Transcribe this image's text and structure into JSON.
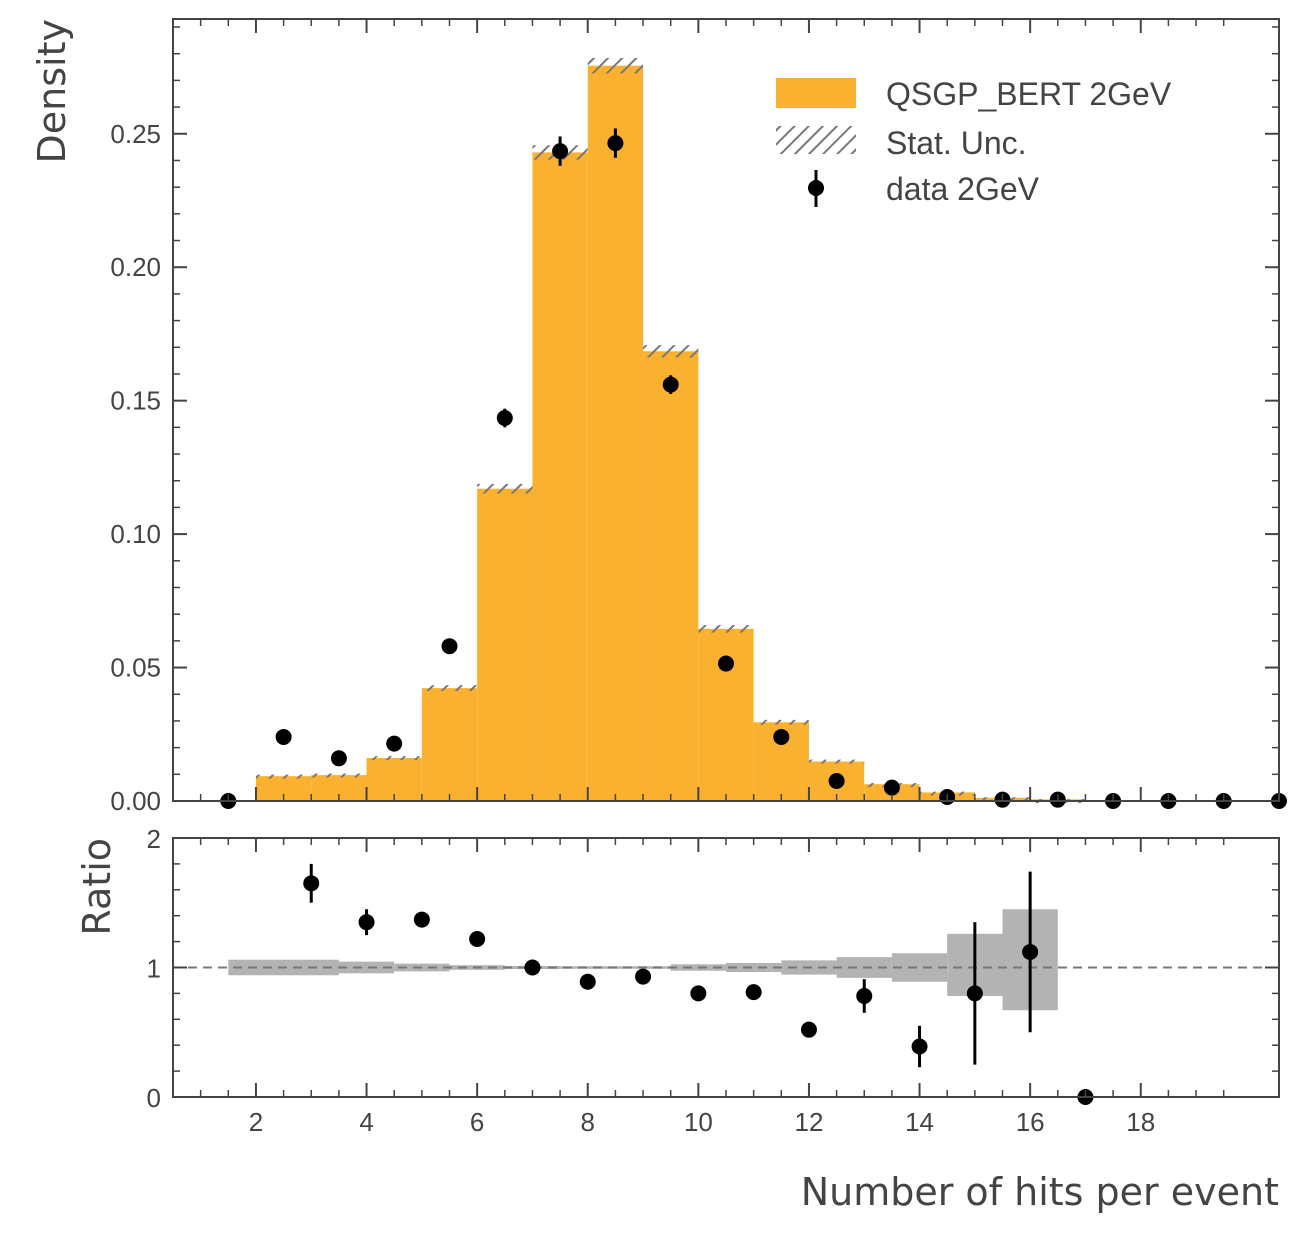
{
  "chart_data": [
    {
      "type": "bar",
      "panel": "main",
      "ylabel": "Density",
      "ylim": [
        0,
        0.293
      ],
      "xlim": [
        0.5,
        20.5
      ],
      "yticks": [
        0.0,
        0.05,
        0.1,
        0.15,
        0.2,
        0.25
      ],
      "ytick_labels": [
        "0.00",
        "0.05",
        "0.10",
        "0.15",
        "0.20",
        "0.25"
      ],
      "series": [
        {
          "name": "QSGP_BERT 2GeV",
          "kind": "histogram",
          "color": "#fbb130",
          "bins": [
            {
              "lo": 2,
              "hi": 3,
              "value": 0.0093,
              "unc": 0.0006
            },
            {
              "lo": 3,
              "hi": 4,
              "value": 0.0097,
              "unc": 0.0006
            },
            {
              "lo": 4,
              "hi": 5,
              "value": 0.0161,
              "unc": 0.0007
            },
            {
              "lo": 5,
              "hi": 6,
              "value": 0.0423,
              "unc": 0.0011
            },
            {
              "lo": 6,
              "hi": 7,
              "value": 0.117,
              "unc": 0.0018
            },
            {
              "lo": 7,
              "hi": 8,
              "value": 0.243,
              "unc": 0.0027
            },
            {
              "lo": 8,
              "hi": 9,
              "value": 0.2755,
              "unc": 0.0029
            },
            {
              "lo": 9,
              "hi": 10,
              "value": 0.1685,
              "unc": 0.0023
            },
            {
              "lo": 10,
              "hi": 11,
              "value": 0.0645,
              "unc": 0.0014
            },
            {
              "lo": 11,
              "hi": 12,
              "value": 0.0295,
              "unc": 0.0009
            },
            {
              "lo": 12,
              "hi": 13,
              "value": 0.0148,
              "unc": 0.0007
            },
            {
              "lo": 13,
              "hi": 14,
              "value": 0.0063,
              "unc": 0.0004
            },
            {
              "lo": 14,
              "hi": 15,
              "value": 0.0032,
              "unc": 0.0003
            },
            {
              "lo": 15,
              "hi": 16,
              "value": 0.0012,
              "unc": 0.0002
            },
            {
              "lo": 16,
              "hi": 17,
              "value": 0.0006,
              "unc": 0.0001
            }
          ]
        },
        {
          "name": "Stat. Unc.",
          "kind": "hatched-band",
          "color": "#777777"
        },
        {
          "name": "data 2GeV",
          "kind": "errorbar",
          "color": "#000000",
          "x": [
            1.5,
            2.5,
            3.5,
            4.5,
            5.5,
            6.5,
            7.5,
            8.5,
            9.5,
            10.5,
            11.5,
            12.5,
            13.5,
            14.5,
            15.5,
            16.5,
            17.5,
            18.5,
            19.5,
            20.5
          ],
          "y": [
            0.0,
            0.024,
            0.016,
            0.0215,
            0.058,
            0.1435,
            0.2435,
            0.2465,
            0.156,
            0.0515,
            0.024,
            0.0075,
            0.005,
            0.0015,
            0.0005,
            0.0005,
            0.0,
            0.0,
            0.0,
            0.0
          ],
          "yerr": [
            0.0,
            0.0013,
            0.0012,
            0.0013,
            0.0018,
            0.0035,
            0.0055,
            0.0055,
            0.0035,
            0.0017,
            0.0012,
            0.0009,
            0.0006,
            0.0003,
            0.0002,
            0.0002,
            0.0,
            0.0,
            0.0,
            0.0
          ]
        }
      ],
      "legend": {
        "placement": "top-right",
        "entries": [
          "QSGP_BERT 2GeV",
          "Stat. Unc.",
          "data 2GeV"
        ]
      }
    },
    {
      "type": "scatter",
      "panel": "ratio",
      "ylabel": "Ratio",
      "xlabel": "Number of hits per event",
      "ylim": [
        0,
        2
      ],
      "xlim": [
        0.5,
        20.5
      ],
      "yticks": [
        0,
        1,
        2
      ],
      "ytick_labels": [
        "0",
        "1",
        "2"
      ],
      "xticks": [
        2,
        4,
        6,
        8,
        10,
        12,
        14,
        16,
        18
      ],
      "xtick_labels": [
        "2",
        "4",
        "6",
        "8",
        "10",
        "12",
        "14",
        "16",
        "18"
      ],
      "reference_line": 1,
      "band": {
        "color": "#b3b3b3",
        "bins": [
          {
            "lo": 1.5,
            "hi": 3.5,
            "down": 0.94,
            "up": 1.06
          },
          {
            "lo": 3.5,
            "hi": 4.5,
            "down": 0.955,
            "up": 1.045
          },
          {
            "lo": 4.5,
            "hi": 5.5,
            "down": 0.97,
            "up": 1.03
          },
          {
            "lo": 5.5,
            "hi": 6.5,
            "down": 0.982,
            "up": 1.018
          },
          {
            "lo": 6.5,
            "hi": 7.5,
            "down": 0.988,
            "up": 1.012
          },
          {
            "lo": 7.5,
            "hi": 8.5,
            "down": 0.99,
            "up": 1.01
          },
          {
            "lo": 8.5,
            "hi": 9.5,
            "down": 0.99,
            "up": 1.01
          },
          {
            "lo": 9.5,
            "hi": 10.5,
            "down": 0.975,
            "up": 1.025
          },
          {
            "lo": 10.5,
            "hi": 11.5,
            "down": 0.965,
            "up": 1.035
          },
          {
            "lo": 11.5,
            "hi": 12.5,
            "down": 0.945,
            "up": 1.055
          },
          {
            "lo": 12.5,
            "hi": 13.5,
            "down": 0.92,
            "up": 1.08
          },
          {
            "lo": 13.5,
            "hi": 14.5,
            "down": 0.89,
            "up": 1.11
          },
          {
            "lo": 14.5,
            "hi": 15.5,
            "down": 0.78,
            "up": 1.26
          },
          {
            "lo": 15.5,
            "hi": 16.5,
            "down": 0.67,
            "up": 1.45
          }
        ]
      },
      "points": {
        "color": "#000000",
        "x": [
          3,
          4,
          5,
          6,
          7,
          8,
          9,
          10,
          11,
          12,
          13,
          14,
          15,
          16,
          17
        ],
        "y": [
          1.65,
          1.35,
          1.37,
          1.22,
          1.0,
          0.89,
          0.93,
          0.8,
          0.81,
          0.52,
          0.78,
          0.39,
          0.8,
          1.12,
          0.0
        ],
        "yerr": [
          0.15,
          0.1,
          0.04,
          0.03,
          0.02,
          0.02,
          0.02,
          0.03,
          0.03,
          0.06,
          0.13,
          0.16,
          0.55,
          0.62,
          0.0
        ]
      }
    }
  ]
}
